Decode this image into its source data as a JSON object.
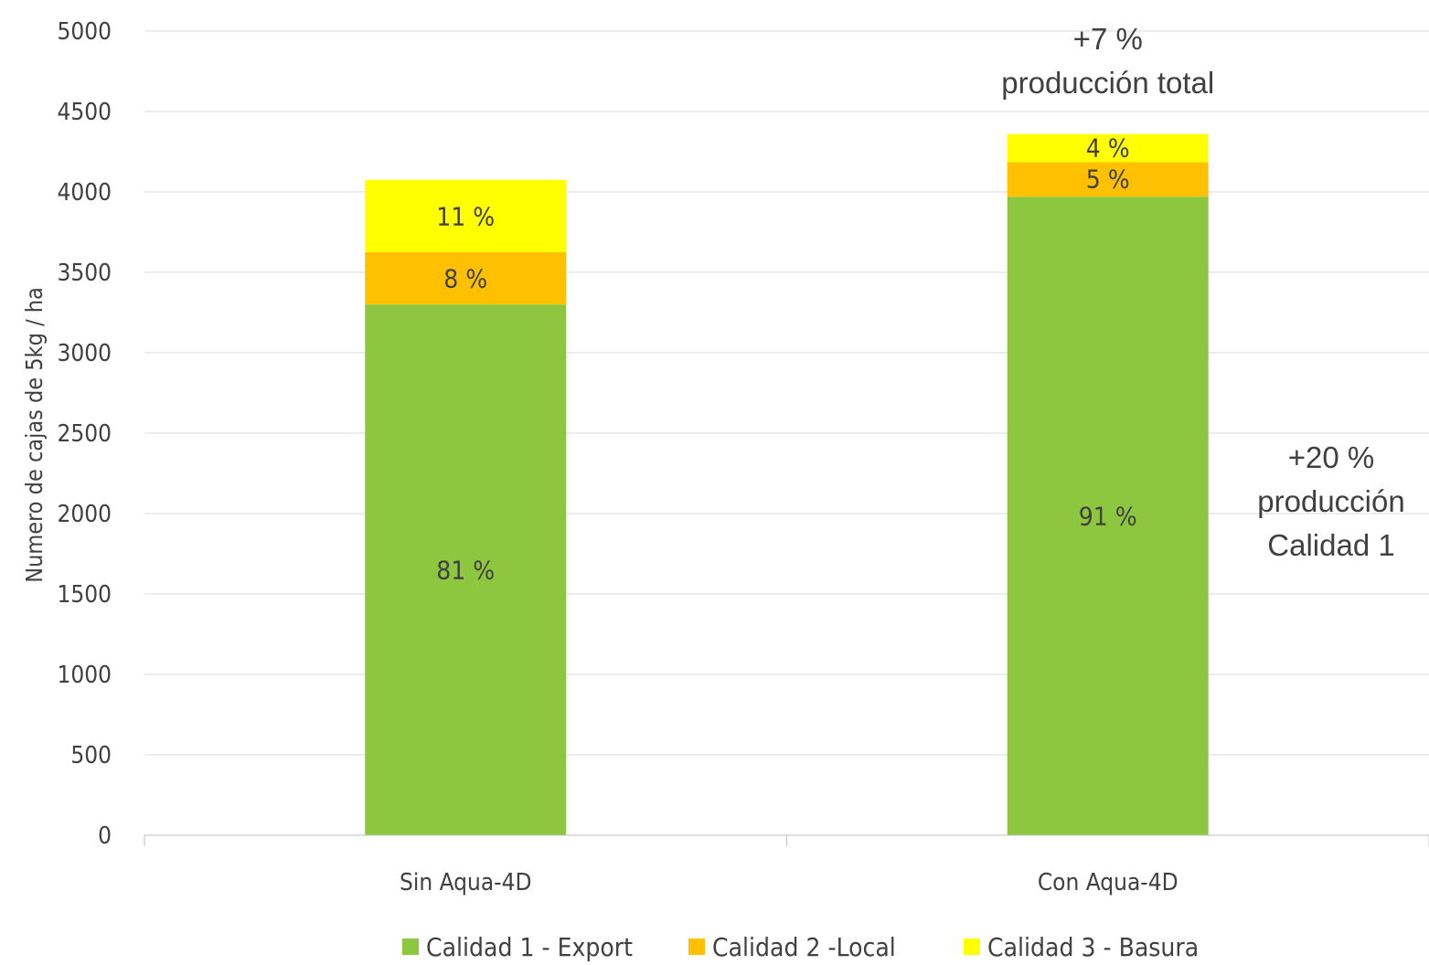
{
  "chart_data": {
    "type": "bar",
    "stacked": true,
    "categories": [
      "Sin Aqua-4D",
      "Con Aqua-4D"
    ],
    "series": [
      {
        "name": "Calidad 1 - Export",
        "color": "#8dc63f",
        "values": [
          3300,
          3970
        ],
        "labels": [
          "81 %",
          "91 %"
        ]
      },
      {
        "name": "Calidad 2 -Local",
        "color": "#ffc000",
        "values": [
          325,
          215
        ],
        "labels": [
          "8 %",
          "5 %"
        ]
      },
      {
        "name": "Calidad 3 - Basura",
        "color": "#ffff00",
        "values": [
          450,
          175
        ],
        "labels": [
          "11 %",
          "4 %"
        ]
      }
    ],
    "ylabel": "Numero de cajas de 5kg / ha",
    "xlabel": "",
    "title": "",
    "ylim": [
      0,
      5000
    ],
    "yticks": [
      0,
      500,
      1000,
      1500,
      2000,
      2500,
      3000,
      3500,
      4000,
      4500,
      5000
    ],
    "grid": true,
    "legend_position": "bottom",
    "annotations": [
      {
        "lines": [
          "+7 %",
          "producción total"
        ],
        "anchor": "above-second-bar"
      },
      {
        "lines": [
          "+20 %",
          "producción",
          "Calidad 1"
        ],
        "anchor": "right-of-second-bar"
      }
    ]
  }
}
